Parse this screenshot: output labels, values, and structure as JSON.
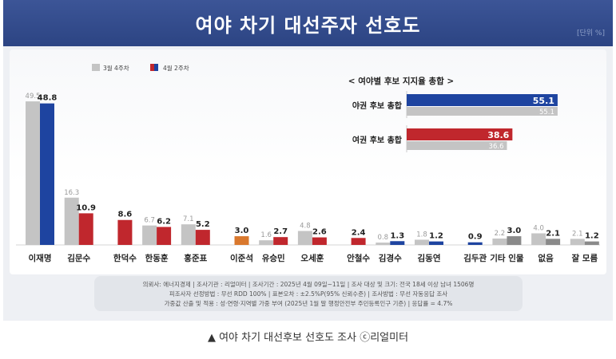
{
  "header": {
    "title": "여야 차기 대선주자 선호도",
    "unit": "[단위 %]"
  },
  "chart_data": {
    "type": "bar",
    "legend": {
      "prev_label": "3월 4주차",
      "curr_label": "4월 2주차",
      "position": "top-left"
    },
    "series_names": [
      "3월 4주차",
      "4월 2주차"
    ],
    "categories": [
      {
        "name": "이재명",
        "prev": 49.5,
        "curr": 48.8,
        "prev_label": "49.5",
        "curr_label": "48.8",
        "color": "#1e44a0"
      },
      {
        "name": "김문수",
        "prev": 16.3,
        "curr": 10.9,
        "prev_label": "16.3",
        "curr_label": "10.9",
        "color": "#c0272d"
      },
      {
        "name": "한덕수",
        "prev": null,
        "curr": 8.6,
        "prev_label": "",
        "curr_label": "8.6",
        "color": "#c0272d"
      },
      {
        "name": "한동훈",
        "prev": 6.7,
        "curr": 6.2,
        "prev_label": "6.7",
        "curr_label": "6.2",
        "color": "#c0272d"
      },
      {
        "name": "홍준표",
        "prev": 7.1,
        "curr": 5.2,
        "prev_label": "7.1",
        "curr_label": "5.2",
        "color": "#c0272d"
      },
      {
        "name": "이준석",
        "prev": null,
        "curr": 3.0,
        "prev_label": "",
        "curr_label": "3.0",
        "color": "#d9782d"
      },
      {
        "name": "유승민",
        "prev": 1.6,
        "curr": 2.7,
        "prev_label": "1.6",
        "curr_label": "2.7",
        "color": "#c0272d"
      },
      {
        "name": "오세훈",
        "prev": 4.8,
        "curr": 2.6,
        "prev_label": "4.8",
        "curr_label": "2.6",
        "color": "#c0272d"
      },
      {
        "name": "안철수",
        "prev": null,
        "curr": 2.4,
        "prev_label": "",
        "curr_label": "2.4",
        "color": "#c0272d"
      },
      {
        "name": "김경수",
        "prev": 0.8,
        "curr": 1.3,
        "prev_label": "0.8",
        "curr_label": "1.3",
        "color": "#1e44a0"
      },
      {
        "name": "김동연",
        "prev": 1.8,
        "curr": 1.2,
        "prev_label": "1.8",
        "curr_label": "1.2",
        "color": "#1e44a0"
      },
      {
        "name": "김두관",
        "prev": null,
        "curr": 0.9,
        "prev_label": "",
        "curr_label": "0.9",
        "color": "#1e44a0"
      },
      {
        "name": "기타 인물",
        "prev": 2.2,
        "curr": 3.0,
        "prev_label": "2.2",
        "curr_label": "3.0",
        "color": "#8a8a8a"
      },
      {
        "name": "없음",
        "prev": 4.0,
        "curr": 2.1,
        "prev_label": "4.0",
        "curr_label": "2.1",
        "color": "#8a8a8a"
      },
      {
        "name": "잘 모름",
        "prev": 2.1,
        "curr": 1.2,
        "prev_label": "2.1",
        "curr_label": "1.2",
        "color": "#8a8a8a"
      }
    ],
    "ylim": [
      0,
      52
    ],
    "prev_color": "#c4c4c4",
    "inset": {
      "title": "< 여야별 후보 지지율 총합 >",
      "xlim": [
        0,
        70
      ],
      "rows": [
        {
          "label": "야권 후보 총합",
          "curr": 55.1,
          "prev": 55.1,
          "curr_label": "55.1",
          "prev_label": "55.1",
          "color": "#1e44a0"
        },
        {
          "label": "여권 후보 총합",
          "curr": 38.6,
          "prev": 36.6,
          "curr_label": "38.6",
          "prev_label": "36.6",
          "color": "#c0272d"
        }
      ]
    }
  },
  "footnote": {
    "line1": "의뢰사: 에너지경제 | 조사기관 : 리얼미터 | 조사기간 : 2025년 4월 09일~11일 | 조사 대상 및 크기: 전국 18세 이상 남녀 1506명",
    "line2": "피조사자 선정방법 : 무선 RDD 100% | 표본오차 : ±2.5%P(95% 신뢰수준) | 조사방법 : 무선 자동응답 조사",
    "line3": "가중값 산출 및 적용 : 성·연령·지역별 가중 부여 (2025년 1월 말 행정안전부 주민등록인구 기준) | 응답률 = 4.7%"
  },
  "caption": "▲ 여야 차기 대선후보 선호도 조사 ⓒ리얼미터"
}
